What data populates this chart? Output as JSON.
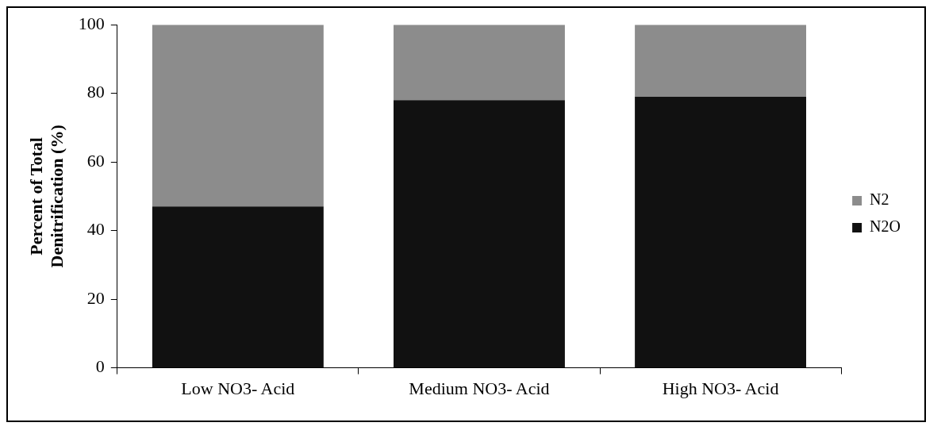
{
  "chart_data": {
    "type": "bar",
    "stacked": true,
    "ylabel": "Percent of Total Denitrification (%)",
    "categories": [
      "Low NO3- Acid",
      "Medium NO3- Acid",
      "High NO3- Acid"
    ],
    "series": [
      {
        "name": "N2O",
        "color": "#111111",
        "values": [
          47,
          78,
          79
        ]
      },
      {
        "name": "N2",
        "color": "#8c8c8c",
        "values": [
          53,
          22,
          21
        ]
      }
    ],
    "ylim": [
      0,
      100
    ],
    "yticks": [
      0,
      20,
      40,
      60,
      80,
      100
    ],
    "grid": false,
    "legend": "right"
  }
}
